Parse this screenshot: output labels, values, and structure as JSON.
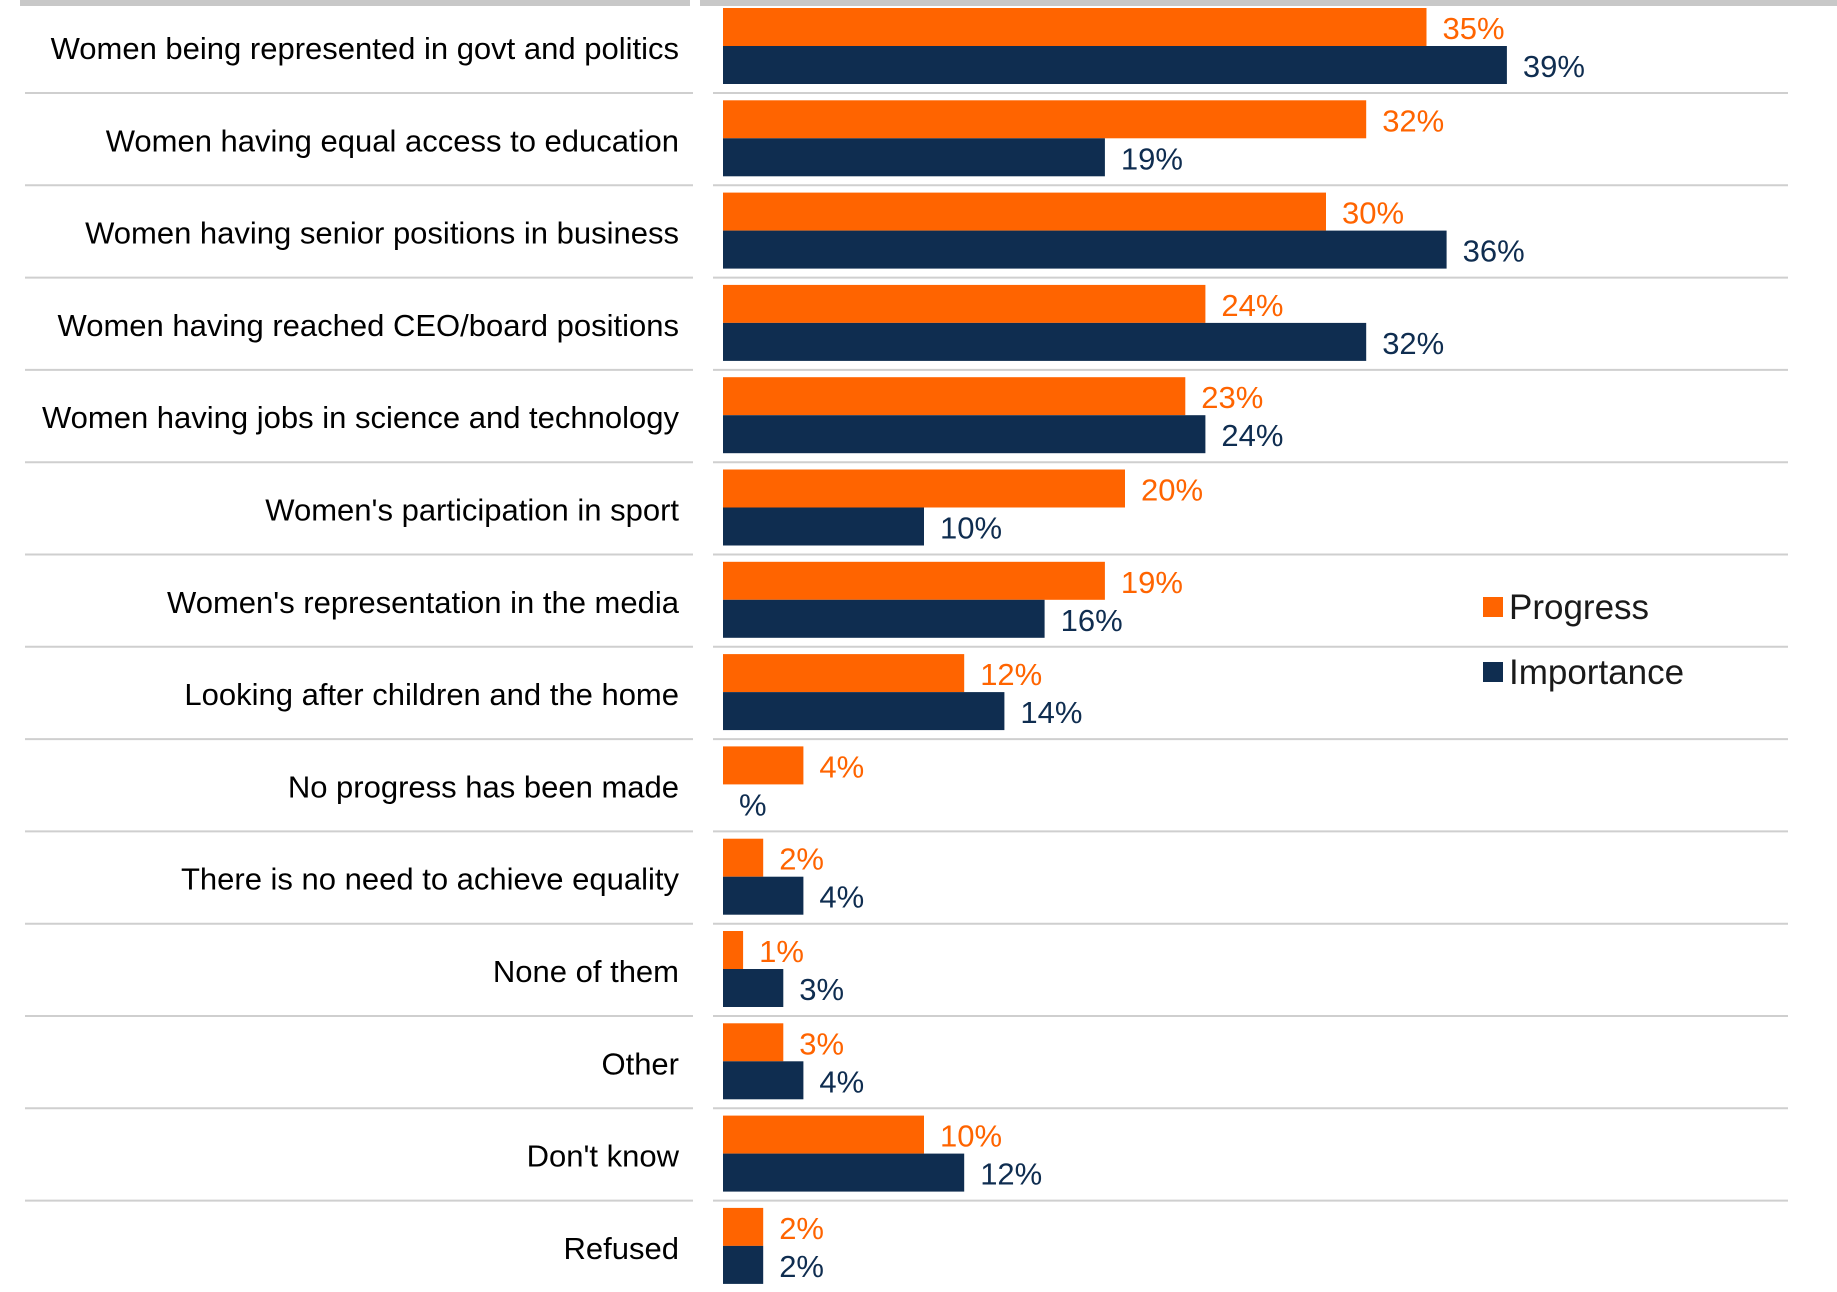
{
  "chart_data": {
    "type": "bar",
    "orientation": "horizontal",
    "categories": [
      "Women being represented in govt and politics",
      "Women having equal access to education",
      "Women having senior positions in business",
      "Women having reached CEO/board positions",
      "Women having jobs in science and technology",
      "Women's participation in sport",
      "Women's representation in the media",
      "Looking after children and the home",
      "No progress has been made",
      "There is no need to achieve equality",
      "None of them",
      "Other",
      "Don't know",
      "Refused"
    ],
    "series": [
      {
        "name": "Progress",
        "color": "#FF6400",
        "values": [
          35,
          32,
          30,
          24,
          23,
          20,
          19,
          12,
          4,
          2,
          1,
          3,
          10,
          2
        ],
        "labels": [
          "35%",
          "32%",
          "30%",
          "24%",
          "23%",
          "20%",
          "19%",
          "12%",
          "4%",
          "2%",
          "1%",
          "3%",
          "10%",
          "2%"
        ]
      },
      {
        "name": "Importance",
        "color": "#0F2D50",
        "values": [
          39,
          19,
          36,
          32,
          24,
          10,
          16,
          14,
          0,
          4,
          3,
          4,
          12,
          2
        ],
        "labels": [
          "39%",
          "19%",
          "36%",
          "32%",
          "24%",
          "10%",
          "16%",
          "14%",
          "%",
          "4%",
          "3%",
          "4%",
          "12%",
          "2%"
        ]
      }
    ],
    "xlim": [
      0,
      53
    ],
    "legend": {
      "position": "right",
      "items": [
        "Progress",
        "Importance"
      ]
    },
    "colors": {
      "progress": "#FF6400",
      "importance": "#0F2D50",
      "gridline": "#CFCFCF"
    }
  }
}
